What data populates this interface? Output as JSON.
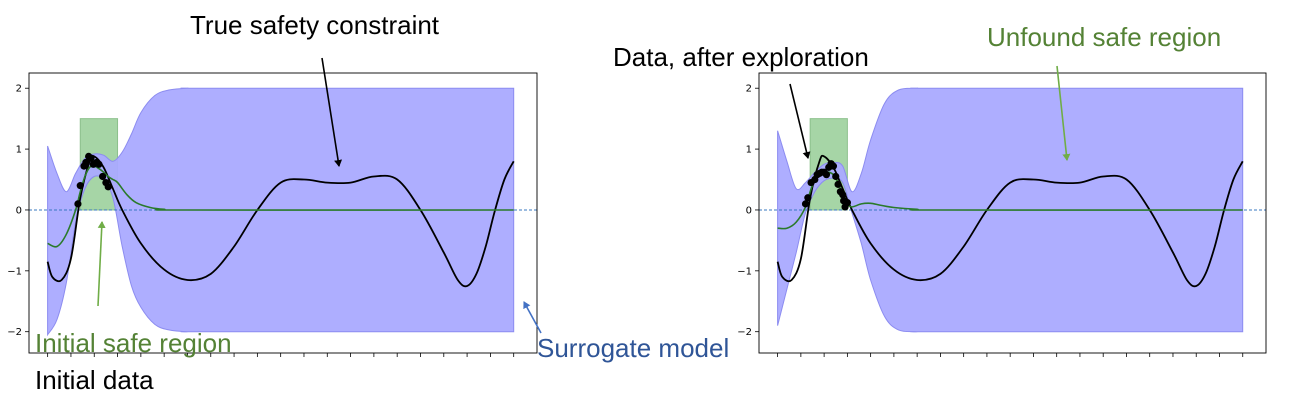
{
  "annotations": {
    "true_constraint": "True safety constraint",
    "data_after": "Data, after exploration",
    "unfound": "Unfound safe region",
    "initial_safe": "Initial safe region",
    "initial_data": "Initial data",
    "surrogate": "Surrogate model"
  },
  "colors": {
    "band": "#aaaaff",
    "band_edge": "#8c8cf0",
    "safe_region": "#a6d5a6",
    "true_curve": "#000000",
    "mean_curve": "#2a7a2a",
    "threshold": "#3a78c0",
    "green_text": "#548235",
    "blue_text": "#2f5597",
    "black_text": "#000000"
  },
  "chart_data": [
    {
      "type": "line",
      "title": "",
      "xlabel": "",
      "ylabel": "",
      "ylim": [
        -2.35,
        2.25
      ],
      "yticks": [
        2,
        1,
        0,
        -1,
        -2
      ],
      "ytick_labels": [
        "2",
        "1",
        "0",
        "−1",
        "−2"
      ],
      "xlim": [
        -0.04,
        1.05
      ],
      "threshold": 0,
      "safe_region": {
        "x": [
          0.07,
          0.15
        ],
        "y": [
          0,
          1.5
        ]
      },
      "true_constraint": {
        "x": [
          0.0,
          0.01,
          0.03,
          0.05,
          0.07,
          0.09,
          0.1,
          0.12,
          0.14,
          0.16,
          0.2,
          0.25,
          0.3,
          0.35,
          0.4,
          0.45,
          0.5,
          0.55,
          0.6,
          0.65,
          0.7,
          0.75,
          0.8,
          0.85,
          0.88,
          0.9,
          0.92,
          0.94,
          0.96,
          0.98,
          1.0
        ],
        "y": [
          -0.85,
          -1.1,
          -1.15,
          -0.8,
          0.2,
          0.8,
          0.88,
          0.7,
          0.35,
          0.0,
          -0.55,
          -0.98,
          -1.15,
          -1.05,
          -0.6,
          0.0,
          0.45,
          0.5,
          0.45,
          0.45,
          0.55,
          0.5,
          0.0,
          -0.7,
          -1.15,
          -1.25,
          -1.05,
          -0.6,
          0.0,
          0.5,
          0.8
        ]
      },
      "panels": [
        {
          "name": "initial",
          "band_upper": {
            "x": [
              0.0,
              0.02,
              0.04,
              0.06,
              0.08,
              0.1,
              0.12,
              0.14,
              0.16,
              0.18,
              0.2,
              0.23,
              0.26,
              0.3,
              0.35,
              1.0
            ],
            "y": [
              1.05,
              0.6,
              0.3,
              0.6,
              0.85,
              0.92,
              0.9,
              0.8,
              0.95,
              1.25,
              1.6,
              1.88,
              1.97,
              2.0,
              2.0,
              2.0
            ]
          },
          "band_lower": {
            "x": [
              0.0,
              0.02,
              0.04,
              0.06,
              0.08,
              0.1,
              0.12,
              0.14,
              0.16,
              0.18,
              0.2,
              0.23,
              0.26,
              0.3,
              0.35,
              1.0
            ],
            "y": [
              -2.05,
              -1.8,
              -1.2,
              -0.2,
              0.35,
              0.55,
              0.5,
              0.2,
              -0.6,
              -1.25,
              -1.6,
              -1.88,
              -1.97,
              -2.0,
              -2.0,
              -2.0
            ]
          },
          "mean": {
            "x": [
              0.0,
              0.02,
              0.04,
              0.06,
              0.07,
              0.08,
              0.09,
              0.1,
              0.11,
              0.12,
              0.13,
              0.14,
              0.15,
              0.17,
              0.19,
              0.22,
              0.25,
              0.3,
              1.0
            ],
            "y": [
              -0.55,
              -0.6,
              -0.4,
              0.0,
              0.3,
              0.55,
              0.7,
              0.72,
              0.68,
              0.62,
              0.55,
              0.5,
              0.45,
              0.25,
              0.12,
              0.04,
              0.01,
              0.0,
              0.0
            ]
          },
          "points": {
            "x": [
              0.065,
              0.07,
              0.078,
              0.082,
              0.088,
              0.093,
              0.098,
              0.105,
              0.11,
              0.118,
              0.125,
              0.13
            ],
            "y": [
              0.1,
              0.4,
              0.72,
              0.78,
              0.88,
              0.85,
              0.75,
              0.78,
              0.75,
              0.55,
              0.45,
              0.38
            ]
          }
        },
        {
          "name": "after_exploration",
          "band_upper": {
            "x": [
              0.0,
              0.02,
              0.04,
              0.06,
              0.08,
              0.1,
              0.12,
              0.14,
              0.16,
              0.18,
              0.2,
              0.23,
              0.26,
              0.3,
              0.35,
              1.0
            ],
            "y": [
              1.3,
              0.8,
              0.35,
              0.45,
              0.62,
              0.75,
              0.78,
              0.72,
              0.3,
              0.6,
              1.15,
              1.75,
              1.97,
              2.0,
              2.0,
              2.0
            ]
          },
          "band_lower": {
            "x": [
              0.0,
              0.02,
              0.04,
              0.06,
              0.08,
              0.1,
              0.12,
              0.14,
              0.16,
              0.18,
              0.2,
              0.23,
              0.26,
              0.3,
              0.35,
              1.0
            ],
            "y": [
              -1.9,
              -1.3,
              -0.7,
              -0.05,
              0.3,
              0.48,
              0.52,
              0.45,
              -0.05,
              -0.55,
              -1.15,
              -1.75,
              -1.97,
              -2.0,
              -2.0,
              -2.0
            ]
          },
          "mean": {
            "x": [
              0.0,
              0.02,
              0.04,
              0.06,
              0.07,
              0.08,
              0.09,
              0.1,
              0.11,
              0.12,
              0.13,
              0.14,
              0.15,
              0.16,
              0.18,
              0.2,
              0.22,
              0.25,
              0.3,
              0.35,
              1.0
            ],
            "y": [
              -0.3,
              -0.3,
              -0.2,
              0.05,
              0.3,
              0.5,
              0.6,
              0.62,
              0.62,
              0.58,
              0.45,
              0.25,
              0.1,
              0.05,
              0.1,
              0.11,
              0.08,
              0.04,
              0.01,
              0.0,
              0.0
            ]
          },
          "points": {
            "x": [
              0.06,
              0.065,
              0.072,
              0.08,
              0.085,
              0.09,
              0.095,
              0.1,
              0.105,
              0.11,
              0.115,
              0.12,
              0.125,
              0.13,
              0.135,
              0.14,
              0.142,
              0.145,
              0.15
            ],
            "y": [
              0.1,
              0.2,
              0.45,
              0.5,
              0.58,
              0.6,
              0.62,
              0.62,
              0.58,
              0.7,
              0.76,
              0.72,
              0.55,
              0.42,
              0.3,
              0.25,
              0.15,
              0.05,
              0.12
            ]
          }
        }
      ]
    }
  ]
}
